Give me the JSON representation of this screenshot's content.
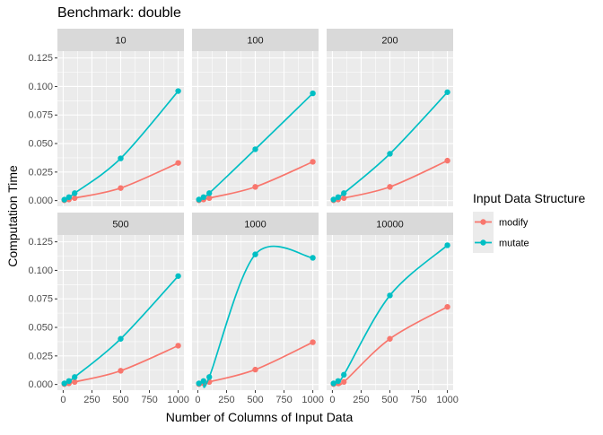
{
  "chart_data": {
    "type": "line",
    "title": "Benchmark: double",
    "xlabel": "Number of Columns of Input Data",
    "ylabel": "Computation Time",
    "xlim": [
      0,
      1000
    ],
    "ylim": [
      0,
      0.125
    ],
    "x_ticks": [
      0,
      250,
      500,
      750,
      1000
    ],
    "x_tick_labels": [
      "0",
      "250",
      "500",
      "750",
      "1000"
    ],
    "y_ticks": [
      0,
      0.025,
      0.05,
      0.075,
      0.1,
      0.125
    ],
    "y_tick_labels": [
      "0.000",
      "0.025",
      "0.050",
      "0.075",
      "0.100",
      "0.125"
    ],
    "grid": true,
    "legend": {
      "title": "Input Data Structure",
      "position": "right",
      "items": [
        {
          "name": "modify",
          "color": "#F8766D"
        },
        {
          "name": "mutate",
          "color": "#00BFC4"
        }
      ]
    },
    "x": [
      10,
      50,
      100,
      500,
      1000
    ],
    "facets": [
      {
        "label": "10",
        "series": [
          {
            "name": "modify",
            "values": [
              0.0003,
              0.001,
              0.0022,
              0.011,
              0.033
            ]
          },
          {
            "name": "mutate",
            "values": [
              0.0008,
              0.003,
              0.0065,
              0.037,
              0.096
            ]
          }
        ]
      },
      {
        "label": "100",
        "series": [
          {
            "name": "modify",
            "values": [
              0.0003,
              0.001,
              0.0022,
              0.012,
              0.034
            ]
          },
          {
            "name": "mutate",
            "values": [
              0.0009,
              0.003,
              0.0065,
              0.045,
              0.094
            ]
          }
        ]
      },
      {
        "label": "200",
        "series": [
          {
            "name": "modify",
            "values": [
              0.0003,
              0.001,
              0.0022,
              0.012,
              0.035
            ]
          },
          {
            "name": "mutate",
            "values": [
              0.0009,
              0.003,
              0.0065,
              0.041,
              0.095
            ]
          }
        ]
      },
      {
        "label": "500",
        "series": [
          {
            "name": "modify",
            "values": [
              0.0003,
              0.001,
              0.0022,
              0.012,
              0.034
            ]
          },
          {
            "name": "mutate",
            "values": [
              0.0009,
              0.003,
              0.0065,
              0.04,
              0.095
            ]
          }
        ]
      },
      {
        "label": "1000",
        "series": [
          {
            "name": "modify",
            "values": [
              0.0003,
              0.001,
              0.0022,
              0.013,
              0.037
            ]
          },
          {
            "name": "mutate",
            "values": [
              0.0009,
              0.003,
              0.0065,
              0.114,
              0.111
            ]
          }
        ]
      },
      {
        "label": "10000",
        "series": [
          {
            "name": "modify",
            "values": [
              0.0003,
              0.001,
              0.0022,
              0.04,
              0.068
            ]
          },
          {
            "name": "mutate",
            "values": [
              0.0009,
              0.003,
              0.0085,
              0.078,
              0.122
            ]
          }
        ]
      }
    ]
  }
}
